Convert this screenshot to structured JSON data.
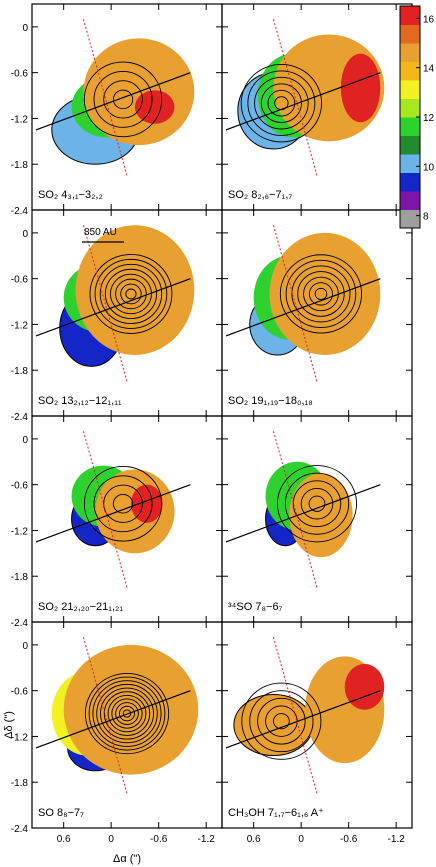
{
  "chart_data": {
    "type": "heatmap",
    "description_axes": {
      "xlabel": "Δα (\")",
      "ylabel": "Δδ (\")",
      "x_ticks": [
        "0.6",
        "0",
        "-0.6",
        "-1.2"
      ],
      "y_ticks": [
        "0",
        "-0.6",
        "-1.2",
        "-1.8",
        "-2.4"
      ],
      "xlim": [
        1.0,
        -1.4
      ],
      "ylim": [
        -2.4,
        0.3
      ]
    },
    "colorbar": {
      "ticks": [
        "16",
        "14",
        "12",
        "10",
        "8"
      ],
      "range": [
        7.5,
        16.5
      ],
      "colors": [
        "#9e9e9e",
        "#7b16a8",
        "#1426c8",
        "#6cb4e8",
        "#238a30",
        "#2ed12e",
        "#a8e820",
        "#f2f222",
        "#f2b81a",
        "#e8a030",
        "#e06a22",
        "#e02222"
      ]
    },
    "scale_bar": {
      "label": "850 AU"
    },
    "panels": [
      {
        "label": "SO₂ 4₃,₁−3₂,₂",
        "lobes": [
          {
            "cx": 0.2,
            "cy": -1.35,
            "w": 0.55,
            "h": 0.45,
            "color": "#6cb4e8"
          },
          {
            "cx": 0.05,
            "cy": -1.05,
            "w": 0.45,
            "h": 0.4,
            "color": "#2ed12e"
          },
          {
            "cx": -0.35,
            "cy": -0.85,
            "w": 0.7,
            "h": 0.7,
            "color": "#e8a030"
          },
          {
            "cx": -0.55,
            "cy": -1.05,
            "w": 0.25,
            "h": 0.22,
            "color": "#e02222"
          }
        ],
        "contours": 4,
        "peak": [
          -0.15,
          -0.95
        ]
      },
      {
        "label": "SO₂ 8₂,₆−7₁,₇",
        "lobes": [
          {
            "cx": 0.35,
            "cy": -1.1,
            "w": 0.45,
            "h": 0.5,
            "color": "#6cb4e8"
          },
          {
            "cx": 0.1,
            "cy": -0.9,
            "w": 0.45,
            "h": 0.55,
            "color": "#2ed12e"
          },
          {
            "cx": -0.35,
            "cy": -0.8,
            "w": 0.7,
            "h": 0.7,
            "color": "#e8a030"
          },
          {
            "cx": -0.75,
            "cy": -0.8,
            "w": 0.25,
            "h": 0.45,
            "color": "#e02222"
          }
        ],
        "contours": 6,
        "peak": [
          0.25,
          -1.0
        ]
      },
      {
        "label": "SO₂ 13₂,₁₂−12₁,₁₁",
        "lobes": [
          {
            "cx": 0.25,
            "cy": -1.25,
            "w": 0.4,
            "h": 0.5,
            "color": "#1426c8"
          },
          {
            "cx": 0.15,
            "cy": -0.85,
            "w": 0.45,
            "h": 0.45,
            "color": "#2ed12e"
          },
          {
            "cx": -0.3,
            "cy": -0.75,
            "w": 0.75,
            "h": 0.85,
            "color": "#e8a030"
          }
        ],
        "contours": 8,
        "peak": [
          -0.25,
          -0.8
        ]
      },
      {
        "label": "SO₂ 19₁,₁₉−18₀,₁₈",
        "lobes": [
          {
            "cx": 0.3,
            "cy": -1.2,
            "w": 0.35,
            "h": 0.4,
            "color": "#6cb4e8"
          },
          {
            "cx": 0.15,
            "cy": -0.85,
            "w": 0.45,
            "h": 0.55,
            "color": "#2ed12e"
          },
          {
            "cx": -0.3,
            "cy": -0.8,
            "w": 0.7,
            "h": 0.8,
            "color": "#e8a030"
          }
        ],
        "contours": 7,
        "peak": [
          -0.25,
          -0.8
        ]
      },
      {
        "label": "SO₂ 21₂,₂₀−21₁,₂₁",
        "lobes": [
          {
            "cx": 0.2,
            "cy": -1.05,
            "w": 0.3,
            "h": 0.35,
            "color": "#1426c8"
          },
          {
            "cx": 0.1,
            "cy": -0.75,
            "w": 0.4,
            "h": 0.4,
            "color": "#2ed12e"
          },
          {
            "cx": -0.3,
            "cy": -0.95,
            "w": 0.5,
            "h": 0.55,
            "color": "#e8a030"
          },
          {
            "cx": -0.45,
            "cy": -0.85,
            "w": 0.2,
            "h": 0.25,
            "color": "#e02222"
          }
        ],
        "contours": 4,
        "peak": [
          -0.15,
          -0.85
        ]
      },
      {
        "label": "³⁴SO 7₈−6₇",
        "lobes": [
          {
            "cx": 0.2,
            "cy": -1.05,
            "w": 0.25,
            "h": 0.35,
            "color": "#1426c8"
          },
          {
            "cx": 0.05,
            "cy": -0.75,
            "w": 0.4,
            "h": 0.45,
            "color": "#2ed12e"
          },
          {
            "cx": -0.25,
            "cy": -1.0,
            "w": 0.4,
            "h": 0.55,
            "color": "#e8a030"
          }
        ],
        "contours": 5,
        "peak": [
          -0.2,
          -0.85
        ]
      },
      {
        "label": "SO 8₈−7₇",
        "lobes": [
          {
            "cx": 0.2,
            "cy": -1.35,
            "w": 0.35,
            "h": 0.3,
            "color": "#1426c8"
          },
          {
            "cx": 0.3,
            "cy": -0.9,
            "w": 0.45,
            "h": 0.55,
            "color": "#f2f222"
          },
          {
            "cx": -0.25,
            "cy": -0.85,
            "w": 0.85,
            "h": 0.85,
            "color": "#e8a030"
          }
        ],
        "contours": 11,
        "peak": [
          -0.2,
          -0.9
        ]
      },
      {
        "label": "CH₃OH 7₁,₇−6₁,₆ A⁺",
        "lobes": [
          {
            "cx": 0.35,
            "cy": -1.05,
            "w": 0.5,
            "h": 0.4,
            "color": "#e8a030"
          },
          {
            "cx": -0.15,
            "cy": -1.0,
            "w": 0.2,
            "h": 0.2,
            "color": "#e8a030"
          },
          {
            "cx": -0.55,
            "cy": -0.85,
            "w": 0.5,
            "h": 0.7,
            "color": "#e8a030"
          },
          {
            "cx": -0.8,
            "cy": -0.55,
            "w": 0.25,
            "h": 0.3,
            "color": "#e02222"
          }
        ],
        "contours": 5,
        "peak": [
          0.25,
          -1.0
        ]
      }
    ]
  }
}
